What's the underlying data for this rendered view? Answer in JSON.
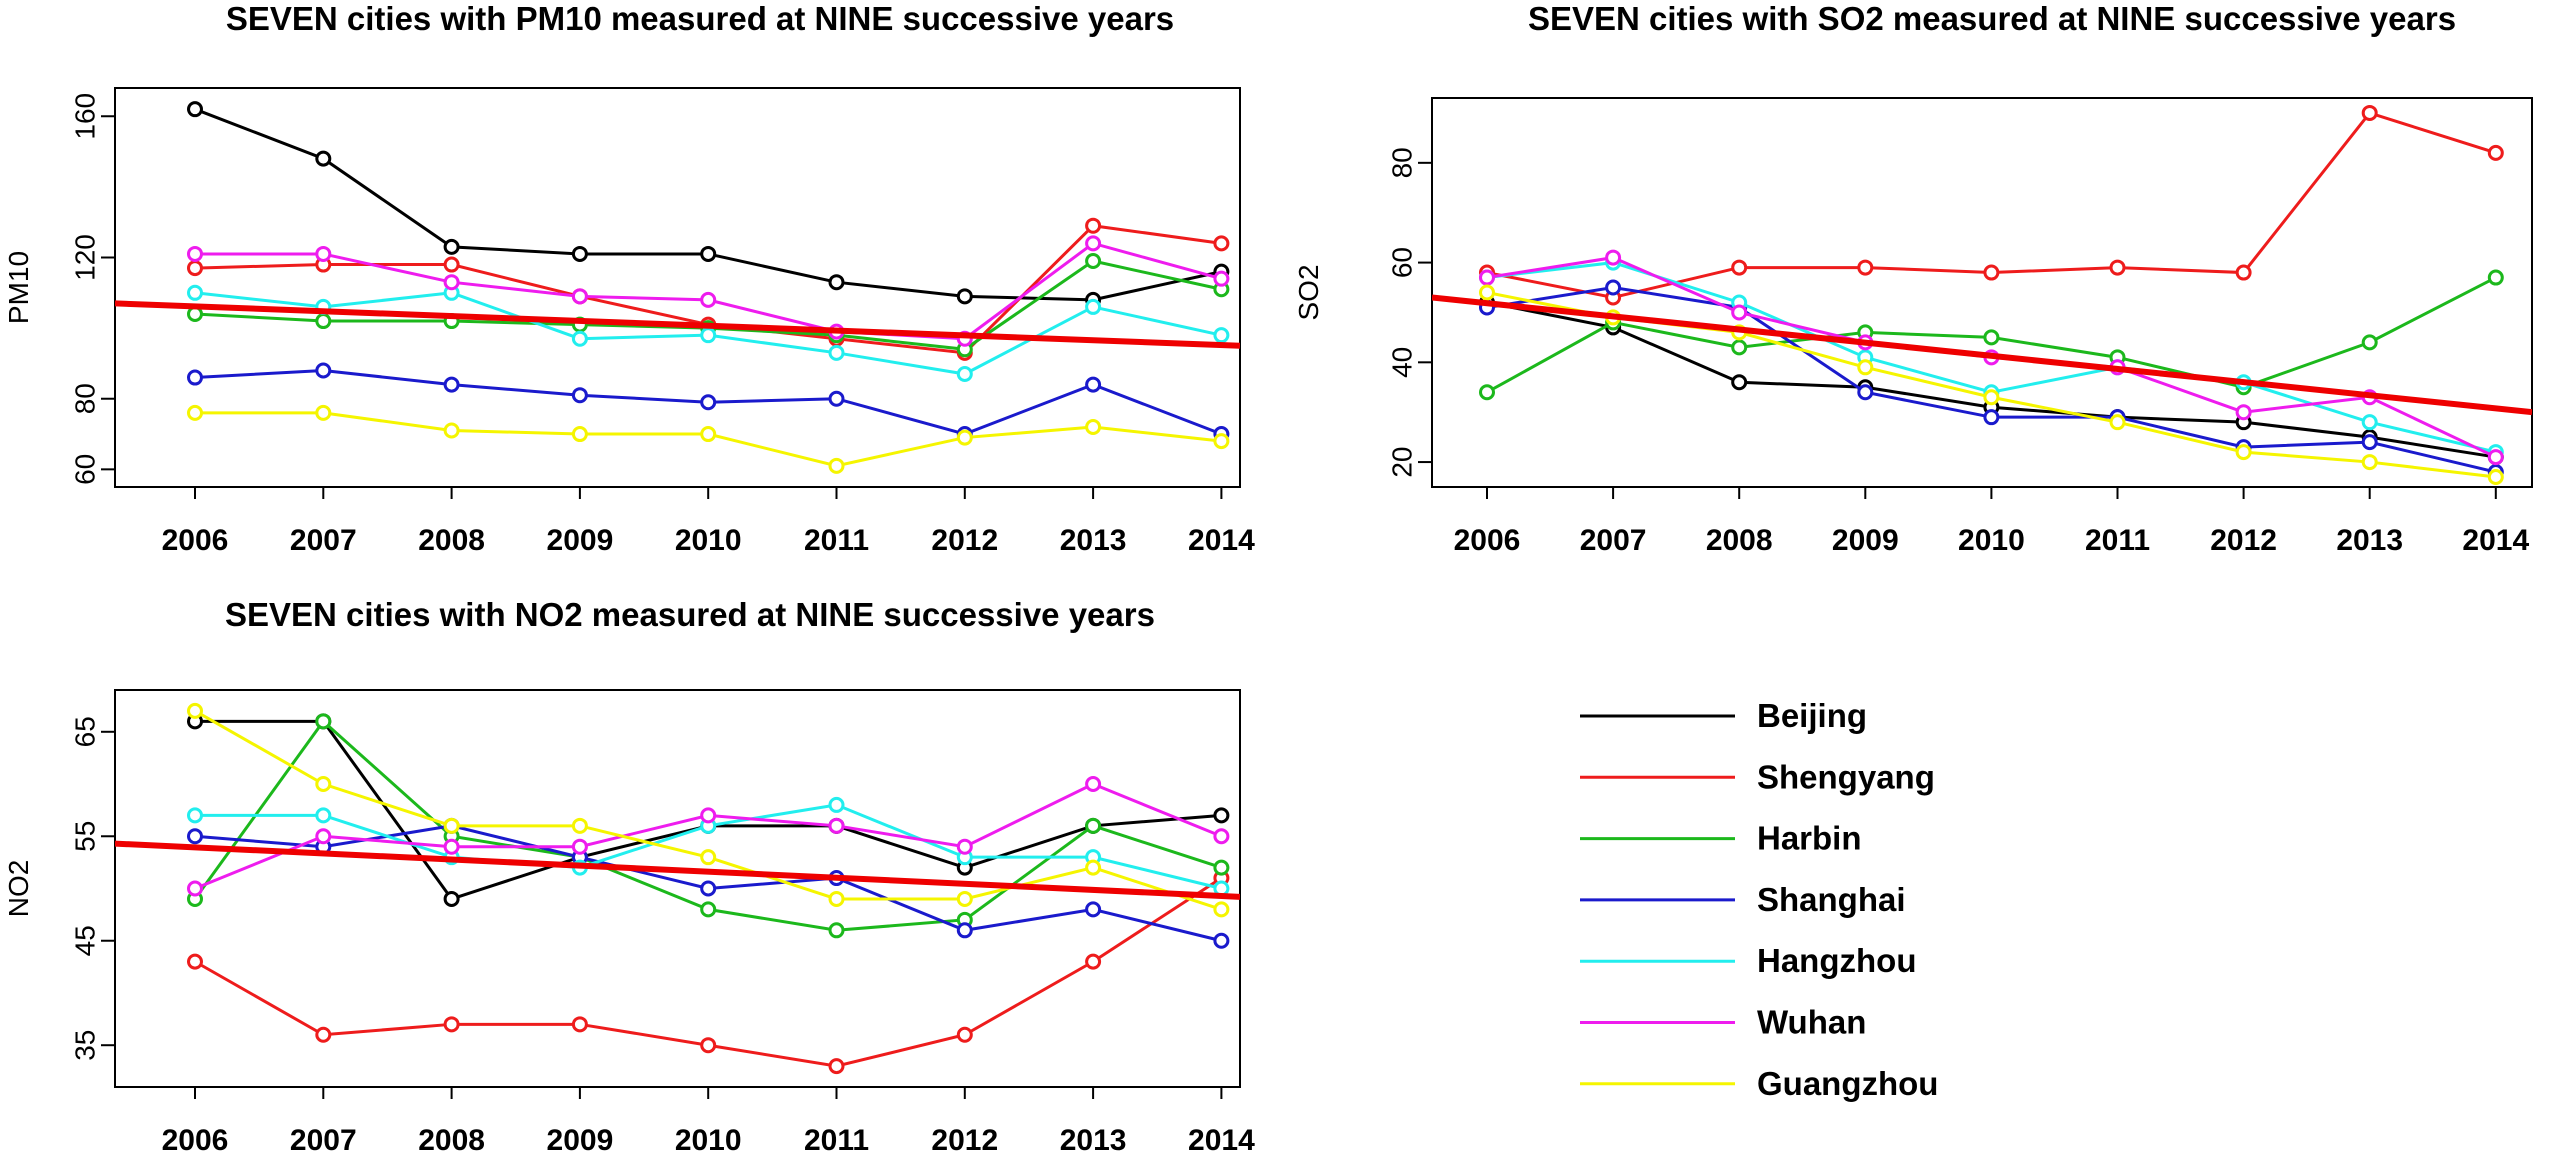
{
  "chart_data": [
    {
      "type": "line",
      "title": "SEVEN cities with PM10 measured at NINE successive years",
      "xlabel": "",
      "ylabel": "PM10",
      "ylim": [
        55,
        168
      ],
      "yticks": [
        60,
        80,
        120,
        160
      ],
      "x": [
        "2006",
        "2007",
        "2008",
        "2009",
        "2010",
        "2011",
        "2012",
        "2013",
        "2014"
      ],
      "series": [
        {
          "name": "Beijing",
          "values": [
            162,
            148,
            123,
            121,
            121,
            113,
            109,
            108,
            116
          ]
        },
        {
          "name": "Shengyang",
          "values": [
            117,
            118,
            118,
            109,
            101,
            97,
            93,
            129,
            124
          ]
        },
        {
          "name": "Harbin",
          "values": [
            104,
            102,
            102,
            101,
            100,
            98,
            94,
            119,
            111
          ]
        },
        {
          "name": "Shanghai",
          "values": [
            86,
            88,
            84,
            81,
            79,
            80,
            70,
            84,
            70
          ]
        },
        {
          "name": "Hangzhou",
          "values": [
            110,
            106,
            110,
            97,
            98,
            93,
            87,
            106,
            98
          ]
        },
        {
          "name": "Wuhan",
          "values": [
            121,
            121,
            113,
            109,
            108,
            99,
            97,
            124,
            114
          ]
        },
        {
          "name": "Guangzhou",
          "values": [
            76,
            76,
            71,
            70,
            70,
            61,
            69,
            72,
            68
          ]
        }
      ],
      "trend": {
        "start": 107,
        "end": 95
      }
    },
    {
      "type": "line",
      "title": "SEVEN cities with SO2 measured at NINE successive years",
      "xlabel": "",
      "ylabel": "SO2",
      "ylim": [
        15,
        93
      ],
      "yticks": [
        20,
        40,
        60,
        80
      ],
      "x": [
        "2006",
        "2007",
        "2008",
        "2009",
        "2010",
        "2011",
        "2012",
        "2013",
        "2014"
      ],
      "series": [
        {
          "name": "Beijing",
          "values": [
            52,
            47,
            36,
            35,
            31,
            29,
            28,
            25,
            21
          ]
        },
        {
          "name": "Shengyang",
          "values": [
            58,
            53,
            59,
            59,
            58,
            59,
            58,
            90,
            82
          ]
        },
        {
          "name": "Harbin",
          "values": [
            34,
            48,
            43,
            46,
            45,
            41,
            35,
            44,
            57
          ]
        },
        {
          "name": "Shanghai",
          "values": [
            51,
            55,
            51,
            34,
            29,
            29,
            23,
            24,
            18
          ]
        },
        {
          "name": "Hangzhou",
          "values": [
            57,
            60,
            52,
            41,
            34,
            39,
            36,
            28,
            22
          ]
        },
        {
          "name": "Wuhan",
          "values": [
            57,
            61,
            50,
            44,
            41,
            39,
            30,
            33,
            21
          ]
        },
        {
          "name": "Guangzhou",
          "values": [
            54,
            49,
            46,
            39,
            33,
            28,
            22,
            20,
            17
          ]
        }
      ],
      "trend": {
        "start": 53,
        "end": 30
      }
    },
    {
      "type": "line",
      "title": "SEVEN cities with NO2 measured at NINE successive years",
      "xlabel": "",
      "ylabel": "NO2",
      "ylim": [
        31,
        69
      ],
      "yticks": [
        35,
        45,
        55,
        65
      ],
      "x": [
        "2006",
        "2007",
        "2008",
        "2009",
        "2010",
        "2011",
        "2012",
        "2013",
        "2014"
      ],
      "series": [
        {
          "name": "Beijing",
          "values": [
            66,
            66,
            49,
            53,
            56,
            56,
            52,
            56,
            57
          ]
        },
        {
          "name": "Shengyang",
          "values": [
            43,
            36,
            37,
            37,
            35,
            33,
            36,
            43,
            51
          ]
        },
        {
          "name": "Harbin",
          "values": [
            49,
            66,
            55,
            53,
            48,
            46,
            47,
            56,
            52
          ]
        },
        {
          "name": "Shanghai",
          "values": [
            55,
            54,
            56,
            53,
            50,
            51,
            46,
            48,
            45
          ]
        },
        {
          "name": "Hangzhou",
          "values": [
            57,
            57,
            53,
            52,
            56,
            58,
            53,
            53,
            50
          ]
        },
        {
          "name": "Wuhan",
          "values": [
            50,
            55,
            54,
            54,
            57,
            56,
            54,
            60,
            55
          ]
        },
        {
          "name": "Guangzhou",
          "values": [
            67,
            60,
            56,
            56,
            53,
            49,
            49,
            52,
            48
          ]
        }
      ],
      "trend": {
        "start": 54.3,
        "end": 49.2
      }
    }
  ],
  "colors": {
    "Beijing": "#000000",
    "Shengyang": "#ee1c1c",
    "Harbin": "#1cb81c",
    "Shanghai": "#1a1acc",
    "Hangzhou": "#22eeee",
    "Wuhan": "#ee1cee",
    "Guangzhou": "#f5f500",
    "trend": "#ee0000"
  },
  "legend": {
    "entries": [
      "Beijing",
      "Shengyang",
      "Harbin",
      "Shanghai",
      "Hangzhou",
      "Wuhan",
      "Guangzhou"
    ]
  }
}
